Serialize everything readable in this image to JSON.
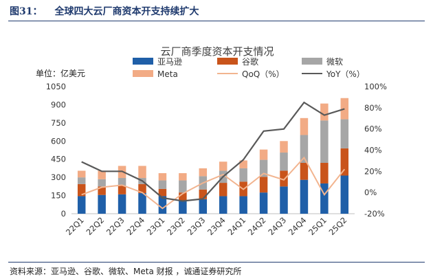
{
  "figure": {
    "number": "图31：",
    "title": "全球四大云厂商资本开支持续扩大",
    "source": "资料来源：亚马逊、谷歌、微软、Meta 财报 ，诚通证券研究所"
  },
  "chart_data": {
    "type": "bar",
    "stacked": true,
    "title": "云厂商季度资本开支情况",
    "unit_label": "单位：亿美元",
    "categories": [
      "22Q1",
      "22Q2",
      "22Q3",
      "22Q4",
      "23Q1",
      "23Q2",
      "23Q3",
      "23Q4",
      "24Q1",
      "24Q2",
      "24Q3",
      "24Q4",
      "25Q1",
      "25Q2"
    ],
    "series": [
      {
        "name": "亚马逊",
        "color": "#1f5fa8",
        "values": [
          145,
          155,
          160,
          170,
          145,
          110,
          120,
          145,
          145,
          175,
          225,
          280,
          250,
          315
        ]
      },
      {
        "name": "谷歌",
        "color": "#c9541b",
        "values": [
          100,
          70,
          70,
          75,
          60,
          65,
          80,
          110,
          120,
          130,
          130,
          140,
          170,
          225
        ]
      },
      {
        "name": "微软",
        "color": "#a6a6a6",
        "values": [
          55,
          60,
          65,
          50,
          70,
          100,
          110,
          100,
          110,
          140,
          150,
          230,
          350,
          240
        ]
      },
      {
        "name": "Meta",
        "color": "#f2ab85",
        "values": [
          55,
          70,
          100,
          100,
          60,
          60,
          65,
          75,
          65,
          85,
          95,
          140,
          140,
          175
        ]
      }
    ],
    "lines": [
      {
        "name": "QoQ（%）",
        "color": "#f2b48f",
        "axis": "right",
        "values": [
          -2,
          5,
          7,
          0,
          -15,
          -1,
          9,
          17,
          3,
          18,
          12,
          33,
          -2,
          22
        ]
      },
      {
        "name": "YoY（%）",
        "color": "#595959",
        "axis": "right",
        "values": [
          29,
          20,
          20,
          11,
          -5,
          -8,
          -6,
          15,
          31,
          58,
          60,
          85,
          73,
          79
        ]
      }
    ],
    "y_left": {
      "min": 0,
      "max": 1050,
      "ticks": [
        0,
        150,
        300,
        450,
        600,
        750,
        900,
        1050
      ]
    },
    "y_right": {
      "min": -20,
      "max": 100,
      "ticks": [
        "-20%",
        "0%",
        "20%",
        "40%",
        "60%",
        "80%",
        "100%"
      ]
    },
    "legend_position": "top"
  }
}
